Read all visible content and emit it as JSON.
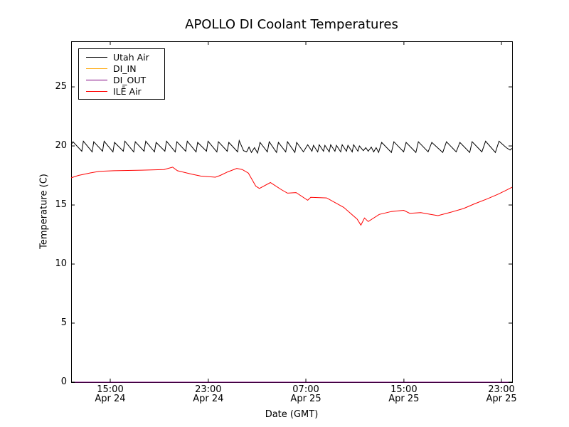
{
  "figure": {
    "background": "#ffffff",
    "frame_color": "#000000"
  },
  "chart_data": {
    "type": "line",
    "title": "APOLLO DI Coolant Temperatures",
    "xlabel": "Date (GMT)",
    "ylabel": "Temperature (C)",
    "grid": false,
    "legend_position": "upper left",
    "xlim_hours": [
      0,
      36.07
    ],
    "ylim": [
      0,
      28.86
    ],
    "x_ticks": [
      {
        "hours": 3.2,
        "time": "15:00",
        "date": "Apr 24"
      },
      {
        "hours": 11.22,
        "time": "23:00",
        "date": "Apr 24"
      },
      {
        "hours": 19.2,
        "time": "07:00",
        "date": "Apr 25"
      },
      {
        "hours": 27.22,
        "time": "15:00",
        "date": "Apr 25"
      },
      {
        "hours": 35.2,
        "time": "23:00",
        "date": "Apr 25"
      }
    ],
    "y_ticks": [
      0,
      5,
      10,
      15,
      20,
      25
    ],
    "series": [
      {
        "name": "Utah Air",
        "color": "#000000",
        "points": [
          [
            0,
            20.1
          ],
          [
            0.15,
            20.35
          ],
          [
            0.87,
            19.55
          ],
          [
            1.0,
            20.4
          ],
          [
            1.72,
            19.5
          ],
          [
            1.85,
            20.35
          ],
          [
            2.57,
            19.55
          ],
          [
            2.7,
            20.4
          ],
          [
            3.42,
            19.5
          ],
          [
            3.55,
            20.3
          ],
          [
            4.27,
            19.55
          ],
          [
            4.4,
            20.4
          ],
          [
            5.12,
            19.5
          ],
          [
            5.25,
            20.35
          ],
          [
            5.97,
            19.55
          ],
          [
            6.1,
            20.4
          ],
          [
            6.82,
            19.5
          ],
          [
            6.95,
            20.3
          ],
          [
            7.67,
            19.55
          ],
          [
            7.8,
            20.4
          ],
          [
            8.52,
            19.5
          ],
          [
            8.65,
            20.35
          ],
          [
            9.37,
            19.55
          ],
          [
            9.5,
            20.4
          ],
          [
            10.22,
            19.5
          ],
          [
            10.35,
            20.3
          ],
          [
            11.07,
            19.55
          ],
          [
            11.2,
            20.4
          ],
          [
            11.92,
            19.5
          ],
          [
            12.05,
            20.35
          ],
          [
            12.77,
            19.55
          ],
          [
            12.9,
            20.3
          ],
          [
            13.62,
            19.5
          ],
          [
            13.75,
            20.45
          ],
          [
            14.1,
            19.6
          ],
          [
            14.35,
            19.5
          ],
          [
            14.55,
            19.9
          ],
          [
            14.75,
            19.45
          ],
          [
            15.0,
            19.85
          ],
          [
            15.25,
            19.4
          ],
          [
            15.45,
            20.3
          ],
          [
            16.05,
            19.5
          ],
          [
            16.2,
            20.35
          ],
          [
            16.8,
            19.45
          ],
          [
            16.95,
            20.3
          ],
          [
            17.55,
            19.5
          ],
          [
            17.7,
            20.35
          ],
          [
            18.3,
            19.45
          ],
          [
            18.45,
            20.3
          ],
          [
            19.0,
            19.5
          ],
          [
            19.35,
            20.1
          ],
          [
            19.7,
            19.55
          ],
          [
            19.82,
            20.05
          ],
          [
            20.17,
            19.5
          ],
          [
            20.29,
            20.1
          ],
          [
            20.64,
            19.55
          ],
          [
            20.76,
            20.05
          ],
          [
            21.11,
            19.5
          ],
          [
            21.23,
            20.1
          ],
          [
            21.58,
            19.55
          ],
          [
            21.7,
            20.05
          ],
          [
            22.05,
            19.5
          ],
          [
            22.17,
            20.1
          ],
          [
            22.52,
            19.55
          ],
          [
            22.64,
            20.05
          ],
          [
            22.99,
            19.5
          ],
          [
            23.11,
            20.1
          ],
          [
            23.46,
            19.55
          ],
          [
            23.58,
            20.0
          ],
          [
            23.9,
            19.6
          ],
          [
            24.1,
            19.85
          ],
          [
            24.3,
            19.55
          ],
          [
            24.55,
            19.9
          ],
          [
            24.75,
            19.5
          ],
          [
            24.95,
            19.85
          ],
          [
            25.15,
            19.45
          ],
          [
            25.4,
            20.3
          ],
          [
            26.2,
            19.45
          ],
          [
            26.4,
            20.35
          ],
          [
            27.2,
            19.5
          ],
          [
            27.4,
            20.3
          ],
          [
            28.2,
            19.45
          ],
          [
            28.4,
            20.35
          ],
          [
            29.2,
            19.5
          ],
          [
            29.5,
            20.3
          ],
          [
            30.4,
            19.45
          ],
          [
            30.7,
            20.35
          ],
          [
            31.5,
            19.5
          ],
          [
            31.8,
            20.3
          ],
          [
            32.6,
            19.45
          ],
          [
            32.8,
            20.35
          ],
          [
            33.6,
            19.5
          ],
          [
            33.9,
            20.4
          ],
          [
            34.7,
            19.45
          ],
          [
            35.0,
            20.4
          ],
          [
            35.6,
            19.85
          ],
          [
            35.9,
            19.65
          ],
          [
            36.07,
            19.8
          ]
        ]
      },
      {
        "name": "DI_IN",
        "color": "#ffa500",
        "points": [
          [
            0,
            0
          ],
          [
            36.07,
            0
          ]
        ]
      },
      {
        "name": "DI_OUT",
        "color": "#800080",
        "points": [
          [
            0,
            0
          ],
          [
            36.07,
            0
          ]
        ]
      },
      {
        "name": "ILĒ Air",
        "color": "#ff0000",
        "points": [
          [
            0,
            17.3
          ],
          [
            0.6,
            17.5
          ],
          [
            1.5,
            17.7
          ],
          [
            2.3,
            17.85
          ],
          [
            3.5,
            17.9
          ],
          [
            5.8,
            17.95
          ],
          [
            7.6,
            18.0
          ],
          [
            8.3,
            18.2
          ],
          [
            8.7,
            17.9
          ],
          [
            9.9,
            17.6
          ],
          [
            10.6,
            17.45
          ],
          [
            11.8,
            17.35
          ],
          [
            12.2,
            17.5
          ],
          [
            12.8,
            17.8
          ],
          [
            13.55,
            18.1
          ],
          [
            14.0,
            18.0
          ],
          [
            14.5,
            17.7
          ],
          [
            15.1,
            16.6
          ],
          [
            15.4,
            16.4
          ],
          [
            16.3,
            16.9
          ],
          [
            17.2,
            16.3
          ],
          [
            17.7,
            16.0
          ],
          [
            18.4,
            16.05
          ],
          [
            19.35,
            15.4
          ],
          [
            19.6,
            15.65
          ],
          [
            20.9,
            15.6
          ],
          [
            22.3,
            14.8
          ],
          [
            23.4,
            13.8
          ],
          [
            23.7,
            13.3
          ],
          [
            24.0,
            13.9
          ],
          [
            24.3,
            13.6
          ],
          [
            25.2,
            14.2
          ],
          [
            26.2,
            14.45
          ],
          [
            27.2,
            14.55
          ],
          [
            27.7,
            14.3
          ],
          [
            28.6,
            14.35
          ],
          [
            29.4,
            14.2
          ],
          [
            30.0,
            14.1
          ],
          [
            31.1,
            14.4
          ],
          [
            32.1,
            14.7
          ],
          [
            33.0,
            15.1
          ],
          [
            34.0,
            15.5
          ],
          [
            34.9,
            15.9
          ],
          [
            35.5,
            16.2
          ],
          [
            36.07,
            16.5
          ]
        ]
      }
    ]
  }
}
